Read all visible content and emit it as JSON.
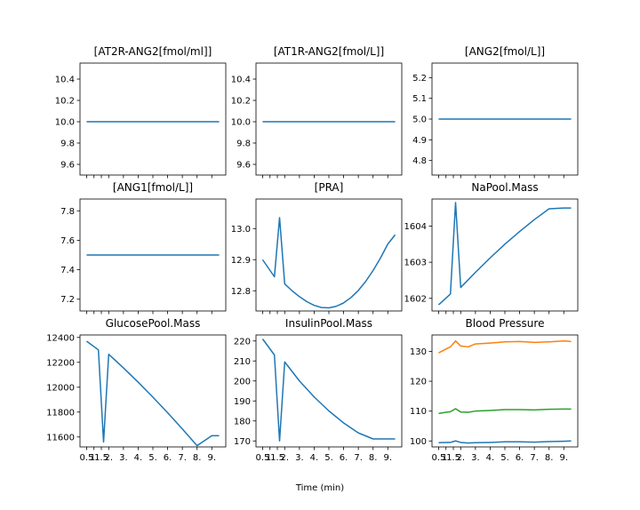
{
  "figure": {
    "xlabel": "Time (min)"
  },
  "colors": {
    "blue": "#1f77b4",
    "orange": "#ff7f0e",
    "green": "#2ca02c"
  },
  "x_tick_labels": [
    "0.5",
    "1.",
    "1.5",
    "2.",
    "3.",
    "4.",
    "5.",
    "6.",
    "7.",
    "8.",
    "9."
  ],
  "chart_data": [
    {
      "type": "line",
      "title": "[AT2R-ANG2[fmol/ml]]",
      "x": [
        0.5,
        1,
        1.5,
        2,
        3,
        4,
        5,
        6,
        7,
        8,
        9,
        9.5
      ],
      "ylim": [
        9.5,
        10.55
      ],
      "yticks": [
        9.6,
        9.8,
        10.0,
        10.2,
        10.4
      ],
      "ytick_labels": [
        "9.6",
        "9.8",
        "10.0",
        "10.2",
        "10.4"
      ],
      "series": [
        {
          "values": [
            10.0,
            10.0,
            10.0,
            10.0,
            10.0,
            10.0,
            10.0,
            10.0,
            10.0,
            10.0,
            10.0,
            10.0
          ]
        }
      ]
    },
    {
      "type": "line",
      "title": "[AT1R-ANG2[fmol/L]]",
      "x": [
        0.5,
        1,
        1.5,
        2,
        3,
        4,
        5,
        6,
        7,
        8,
        9,
        9.5
      ],
      "ylim": [
        9.5,
        10.55
      ],
      "yticks": [
        9.6,
        9.8,
        10.0,
        10.2,
        10.4
      ],
      "ytick_labels": [
        "9.6",
        "9.8",
        "10.0",
        "10.2",
        "10.4"
      ],
      "series": [
        {
          "values": [
            10.0,
            10.0,
            10.0,
            10.0,
            10.0,
            10.0,
            10.0,
            10.0,
            10.0,
            10.0,
            10.0,
            10.0
          ]
        }
      ]
    },
    {
      "type": "line",
      "title": "[ANG2[fmol/L]]",
      "x": [
        0.5,
        1,
        1.5,
        2,
        3,
        4,
        5,
        6,
        7,
        8,
        9,
        9.5
      ],
      "ylim": [
        4.73,
        5.27
      ],
      "yticks": [
        4.8,
        4.9,
        5.0,
        5.1,
        5.2
      ],
      "ytick_labels": [
        "4.8",
        "4.9",
        "5.0",
        "5.1",
        "5.2"
      ],
      "series": [
        {
          "values": [
            5.0,
            5.0,
            5.0,
            5.0,
            5.0,
            5.0,
            5.0,
            5.0,
            5.0,
            5.0,
            5.0,
            5.0
          ]
        }
      ]
    },
    {
      "type": "line",
      "title": "[ANG1[fmol/L]]",
      "x": [
        0.5,
        1,
        1.5,
        2,
        3,
        4,
        5,
        6,
        7,
        8,
        9,
        9.5
      ],
      "ylim": [
        7.12,
        7.88
      ],
      "yticks": [
        7.2,
        7.4,
        7.6,
        7.8
      ],
      "ytick_labels": [
        "7.2",
        "7.4",
        "7.6",
        "7.8"
      ],
      "series": [
        {
          "values": [
            7.5,
            7.5,
            7.5,
            7.5,
            7.5,
            7.5,
            7.5,
            7.5,
            7.5,
            7.5,
            7.5,
            7.5
          ]
        }
      ]
    },
    {
      "type": "line",
      "title": "[PRA]",
      "x": [
        0.5,
        1.3,
        1.65,
        2,
        2.5,
        3,
        3.5,
        4,
        4.5,
        5,
        5.5,
        6,
        6.5,
        7,
        7.5,
        8,
        8.5,
        9,
        9.5
      ],
      "ylim": [
        12.735,
        13.095
      ],
      "yticks": [
        12.8,
        12.9,
        13.0
      ],
      "ytick_labels": [
        "12.8",
        "12.9",
        "13.0"
      ],
      "series": [
        {
          "values": [
            12.9,
            12.845,
            13.035,
            12.822,
            12.8,
            12.781,
            12.765,
            12.753,
            12.746,
            12.745,
            12.75,
            12.761,
            12.778,
            12.801,
            12.83,
            12.865,
            12.905,
            12.95,
            12.98
          ]
        }
      ]
    },
    {
      "type": "line",
      "title": "NaPool.Mass",
      "x": [
        0.5,
        1.3,
        1.65,
        2,
        3,
        4,
        5,
        6,
        7,
        8,
        9,
        9.5
      ],
      "ylim": [
        1601.65,
        1604.75
      ],
      "yticks": [
        1602,
        1603,
        1604
      ],
      "ytick_labels": [
        "1602",
        "1603",
        "1604"
      ],
      "series": [
        {
          "values": [
            1601.82,
            1602.12,
            1604.65,
            1602.3,
            1602.72,
            1603.12,
            1603.5,
            1603.85,
            1604.18,
            1604.48,
            1604.5,
            1604.5
          ]
        }
      ]
    },
    {
      "type": "line",
      "title": "GlucosePool.Mass",
      "x": [
        0.5,
        1.3,
        1.65,
        2,
        3,
        4,
        5,
        6,
        7,
        8,
        9,
        9.5
      ],
      "ylim": [
        11520,
        12420
      ],
      "yticks": [
        11600,
        11800,
        12000,
        12200,
        12400
      ],
      "ytick_labels": [
        "11600",
        "11800",
        "12000",
        "12200",
        "12400"
      ],
      "series": [
        {
          "values": [
            12370,
            12300,
            11560,
            12265,
            12155,
            12040,
            11920,
            11795,
            11665,
            11530,
            11610,
            11610
          ]
        }
      ]
    },
    {
      "type": "line",
      "title": "InsulinPool.Mass",
      "x": [
        0.5,
        1.3,
        1.65,
        2,
        3,
        4,
        5,
        6,
        7,
        8,
        9,
        9.5
      ],
      "ylim": [
        167,
        223
      ],
      "yticks": [
        170,
        180,
        190,
        200,
        210,
        220
      ],
      "ytick_labels": [
        "170",
        "180",
        "190",
        "200",
        "210",
        "220"
      ],
      "series": [
        {
          "values": [
            221,
            213,
            170,
            209.5,
            200,
            192,
            185,
            179,
            174,
            171,
            171,
            171
          ]
        }
      ]
    },
    {
      "type": "line",
      "title": "Blood Pressure",
      "x": [
        0.5,
        1,
        1.3,
        1.65,
        2,
        2.5,
        3,
        4,
        5,
        6,
        7,
        8,
        9,
        9.5
      ],
      "ylim": [
        98,
        135.5
      ],
      "yticks": [
        100,
        110,
        120,
        130
      ],
      "ytick_labels": [
        "100",
        "110",
        "120",
        "130"
      ],
      "series": [
        {
          "values": [
            129.5,
            130.8,
            131.5,
            133.5,
            131.8,
            131.5,
            132.5,
            132.8,
            133.2,
            133.3,
            133.0,
            133.2,
            133.5,
            133.3
          ]
        },
        {
          "values": [
            109.2,
            109.6,
            109.8,
            110.8,
            109.7,
            109.6,
            110.0,
            110.2,
            110.5,
            110.5,
            110.4,
            110.6,
            110.7,
            110.7
          ]
        },
        {
          "values": [
            99.4,
            99.5,
            99.5,
            100.0,
            99.5,
            99.3,
            99.4,
            99.5,
            99.7,
            99.7,
            99.6,
            99.8,
            99.9,
            100.0
          ]
        }
      ]
    }
  ]
}
